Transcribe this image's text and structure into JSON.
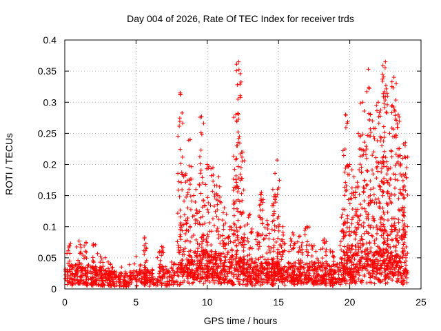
{
  "chart_data": {
    "type": "scatter",
    "title": "Day 004 of 2026, Rate Of TEC Index for receiver trds",
    "xlabel": "GPS time / hours",
    "ylabel": "ROTI / TECUs",
    "xlim": [
      0,
      25
    ],
    "ylim": [
      0,
      0.4
    ],
    "xticks": [
      "0",
      "5",
      "10",
      "15",
      "20",
      "25"
    ],
    "yticks": [
      "0",
      "0.05",
      "0.1",
      "0.15",
      "0.2",
      "0.25",
      "0.3",
      "0.35",
      "0.4"
    ],
    "grid": true,
    "legend": "none",
    "marker": "plus",
    "color": "#ff0000",
    "background_level": [
      [
        0,
        0.022
      ],
      [
        1,
        0.028
      ],
      [
        2,
        0.025
      ],
      [
        3,
        0.02
      ],
      [
        4,
        0.018
      ],
      [
        5,
        0.02
      ],
      [
        6,
        0.022
      ],
      [
        7,
        0.025
      ],
      [
        8,
        0.03
      ],
      [
        9,
        0.035
      ],
      [
        10,
        0.04
      ],
      [
        11,
        0.038
      ],
      [
        12,
        0.035
      ],
      [
        13,
        0.03
      ],
      [
        14,
        0.028
      ],
      [
        15,
        0.03
      ],
      [
        16,
        0.028
      ],
      [
        17,
        0.03
      ],
      [
        18,
        0.028
      ],
      [
        19,
        0.026
      ],
      [
        20,
        0.035
      ],
      [
        21,
        0.04
      ],
      [
        22,
        0.042
      ],
      [
        23,
        0.04
      ],
      [
        24,
        0.035
      ]
    ],
    "peaks": [
      {
        "x": 0.4,
        "y": 0.073
      },
      {
        "x": 1.0,
        "y": 0.077
      },
      {
        "x": 1.5,
        "y": 0.075
      },
      {
        "x": 2.0,
        "y": 0.072
      },
      {
        "x": 2.6,
        "y": 0.048
      },
      {
        "x": 3.2,
        "y": 0.04
      },
      {
        "x": 5.6,
        "y": 0.083
      },
      {
        "x": 6.8,
        "y": 0.068
      },
      {
        "x": 8.1,
        "y": 0.315
      },
      {
        "x": 8.5,
        "y": 0.185
      },
      {
        "x": 8.8,
        "y": 0.24
      },
      {
        "x": 9.2,
        "y": 0.16
      },
      {
        "x": 9.6,
        "y": 0.277
      },
      {
        "x": 10.0,
        "y": 0.2
      },
      {
        "x": 10.4,
        "y": 0.195
      },
      {
        "x": 10.8,
        "y": 0.18
      },
      {
        "x": 11.2,
        "y": 0.13
      },
      {
        "x": 11.6,
        "y": 0.1
      },
      {
        "x": 12.0,
        "y": 0.28
      },
      {
        "x": 12.2,
        "y": 0.365
      },
      {
        "x": 12.5,
        "y": 0.22
      },
      {
        "x": 13.0,
        "y": 0.12
      },
      {
        "x": 13.5,
        "y": 0.09
      },
      {
        "x": 13.8,
        "y": 0.155
      },
      {
        "x": 14.2,
        "y": 0.11
      },
      {
        "x": 14.6,
        "y": 0.16
      },
      {
        "x": 14.9,
        "y": 0.207
      },
      {
        "x": 15.3,
        "y": 0.1
      },
      {
        "x": 16.0,
        "y": 0.09
      },
      {
        "x": 16.5,
        "y": 0.085
      },
      {
        "x": 17.0,
        "y": 0.1
      },
      {
        "x": 17.5,
        "y": 0.07
      },
      {
        "x": 18.2,
        "y": 0.08
      },
      {
        "x": 18.8,
        "y": 0.06
      },
      {
        "x": 19.5,
        "y": 0.12
      },
      {
        "x": 19.7,
        "y": 0.28
      },
      {
        "x": 20.0,
        "y": 0.2
      },
      {
        "x": 20.3,
        "y": 0.18
      },
      {
        "x": 20.6,
        "y": 0.25
      },
      {
        "x": 20.9,
        "y": 0.3
      },
      {
        "x": 21.3,
        "y": 0.353
      },
      {
        "x": 21.6,
        "y": 0.27
      },
      {
        "x": 22.0,
        "y": 0.3
      },
      {
        "x": 22.3,
        "y": 0.345
      },
      {
        "x": 22.5,
        "y": 0.365
      },
      {
        "x": 22.8,
        "y": 0.25
      },
      {
        "x": 23.1,
        "y": 0.34
      },
      {
        "x": 23.4,
        "y": 0.28
      },
      {
        "x": 23.7,
        "y": 0.21
      },
      {
        "x": 23.9,
        "y": 0.235
      }
    ]
  }
}
